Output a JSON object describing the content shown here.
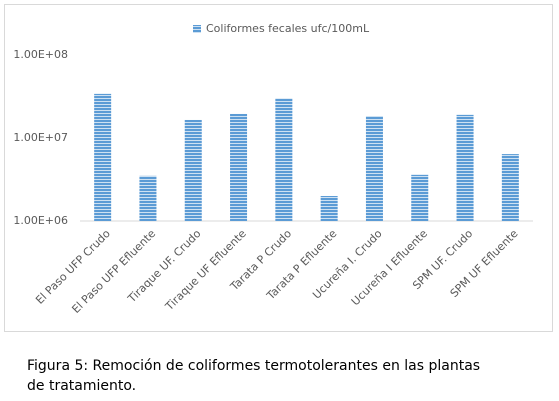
{
  "chart_data": {
    "type": "bar",
    "legend": "top",
    "series": [
      {
        "name": "Coliformes fecales ufc/100mL",
        "color": "#5b9bd5",
        "values": [
          34000000,
          3500000,
          16500000,
          19500000,
          30000000,
          2000000,
          18400000,
          3600000,
          19000000,
          6400000
        ]
      }
    ],
    "categories": [
      "El Paso UFP Crudo",
      "El Paso UFP Efluente",
      "Tiraque UF. Crudo",
      "Tiraque UF Efluente",
      "Tarata P Crudo",
      "Tarata P Efluente",
      "Ucureña I. Crudo",
      "Ucureña I Efluente",
      "SPM  UF. Crudo",
      "SPM  UF Efluente"
    ],
    "yscale": "log",
    "ylim": [
      1000000,
      100000000
    ],
    "yticks": [
      {
        "value": 1000000,
        "label": "1.00E+06"
      },
      {
        "value": 10000000,
        "label": "1.00E+07"
      },
      {
        "value": 100000000,
        "label": "1.00E+08"
      }
    ],
    "grid": false
  },
  "caption": "Figura 5: Remoción de coliformes termotolerantes en las plantas de tratamiento."
}
